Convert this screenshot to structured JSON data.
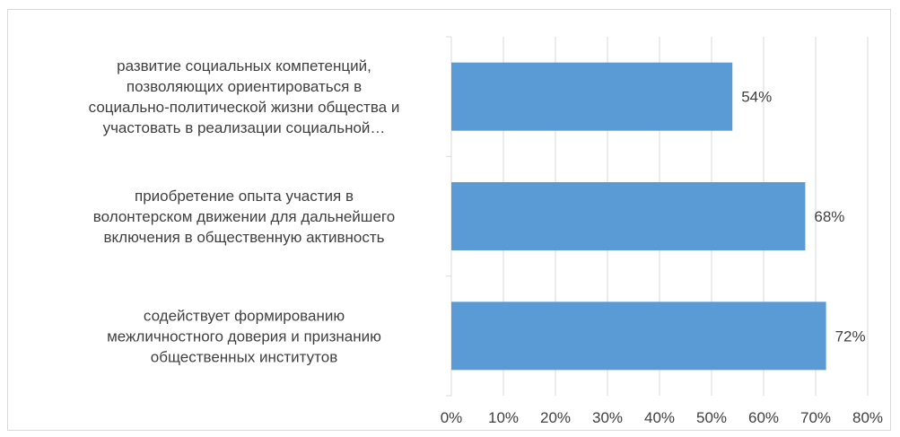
{
  "chart_data": {
    "type": "bar",
    "orientation": "horizontal",
    "categories": [
      "развитие социальных компетенций, позволяющих ориентироваться в социально-политической жизни общества и участовать в реализации социальной…",
      "приобретение опыта участия в волонтерском движении для дальнейшего включения в общественную активность",
      "содействует формированию межличностного доверия и признанию общественных институтов"
    ],
    "category_lines": [
      [
        "развитие социальных компетенций,",
        "позволяющих ориентироваться в",
        "социально-политической жизни общества и",
        "участовать в реализации социальной…"
      ],
      [
        "приобретение опыта участия в",
        "волонтерском движении для дальнейшего",
        "включения в общественную активность"
      ],
      [
        "содействует формированию",
        "межличностного доверия и признанию",
        "общественных институтов"
      ]
    ],
    "series": [
      {
        "values": [
          0.54,
          0.68,
          0.72
        ],
        "data_labels": [
          "54%",
          "68%",
          "72%"
        ]
      }
    ],
    "x_ticks": [
      "0%",
      "10%",
      "20%",
      "30%",
      "40%",
      "50%",
      "60%",
      "70%",
      "80%"
    ],
    "xlim": [
      0,
      0.8
    ],
    "grid": true,
    "legend": "none",
    "bar_color": "#5b9bd5",
    "grid_color": "#d9d9d9",
    "title": "",
    "xlabel": "",
    "ylabel": ""
  }
}
